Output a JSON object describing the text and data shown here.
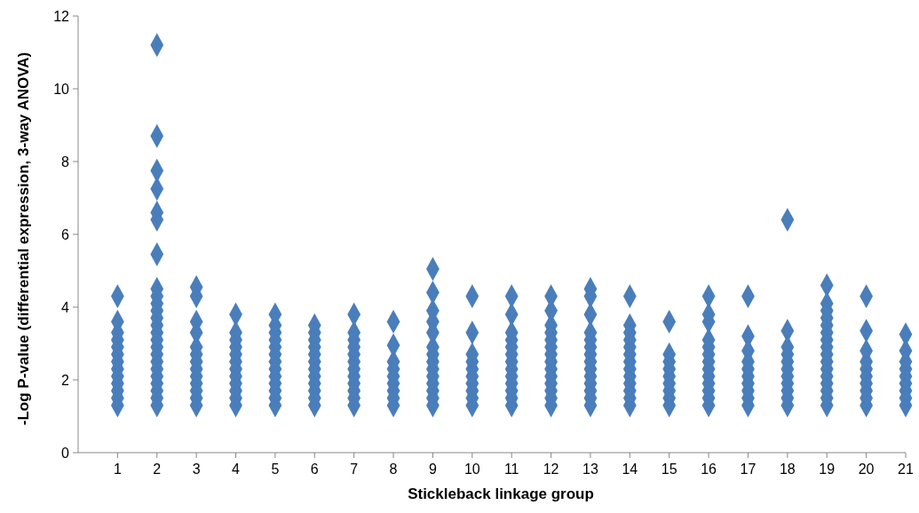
{
  "chart_data": {
    "type": "scatter",
    "xlabel": "Stickleback linkage group",
    "ylabel": "-Log P-value (differential expression, 3-way ANOVA)",
    "marker": "diamond",
    "categories": [
      "1",
      "2",
      "3",
      "4",
      "5",
      "6",
      "7",
      "8",
      "9",
      "10",
      "11",
      "12",
      "13",
      "14",
      "15",
      "16",
      "17",
      "18",
      "19",
      "20",
      "21"
    ],
    "ylim": [
      0,
      12
    ],
    "yticks": [
      0,
      2,
      4,
      6,
      8,
      10,
      12
    ],
    "series": [
      {
        "color": "#4a7ebb",
        "x": [
          "1",
          "1",
          "1",
          "1",
          "1",
          "1",
          "1",
          "1",
          "1",
          "1",
          "1",
          "1",
          "1"
        ],
        "values": [
          1.3,
          1.5,
          1.7,
          1.9,
          2.1,
          2.3,
          2.5,
          2.7,
          2.9,
          3.1,
          3.3,
          3.6,
          4.3
        ]
      },
      {
        "color": "#4a7ebb",
        "x": [
          "2",
          "2",
          "2",
          "2",
          "2",
          "2",
          "2",
          "2",
          "2",
          "2",
          "2",
          "2",
          "2",
          "2",
          "2",
          "2",
          "2",
          "2",
          "2",
          "2",
          "2",
          "2",
          "2",
          "2"
        ],
        "values": [
          1.3,
          1.5,
          1.7,
          1.9,
          2.1,
          2.3,
          2.5,
          2.7,
          2.9,
          3.1,
          3.3,
          3.5,
          3.7,
          3.9,
          4.1,
          4.3,
          4.5,
          5.45,
          6.4,
          6.6,
          7.25,
          7.75,
          8.7,
          11.2
        ]
      },
      {
        "color": "#4a7ebb",
        "x": [
          "3",
          "3",
          "3",
          "3",
          "3",
          "3",
          "3",
          "3",
          "3",
          "3",
          "3",
          "3",
          "3"
        ],
        "values": [
          1.3,
          1.5,
          1.7,
          1.9,
          2.1,
          2.3,
          2.5,
          2.7,
          2.9,
          3.3,
          3.6,
          4.3,
          4.55
        ]
      },
      {
        "color": "#4a7ebb",
        "x": [
          "4",
          "4",
          "4",
          "4",
          "4",
          "4",
          "4",
          "4",
          "4",
          "4",
          "4",
          "4"
        ],
        "values": [
          1.3,
          1.5,
          1.7,
          1.9,
          2.1,
          2.3,
          2.5,
          2.7,
          2.9,
          3.1,
          3.3,
          3.8
        ]
      },
      {
        "color": "#4a7ebb",
        "x": [
          "5",
          "5",
          "5",
          "5",
          "5",
          "5",
          "5",
          "5",
          "5",
          "5",
          "5",
          "5",
          "5"
        ],
        "values": [
          1.3,
          1.5,
          1.7,
          1.9,
          2.1,
          2.3,
          2.5,
          2.7,
          2.9,
          3.1,
          3.3,
          3.5,
          3.8
        ]
      },
      {
        "color": "#4a7ebb",
        "x": [
          "6",
          "6",
          "6",
          "6",
          "6",
          "6",
          "6",
          "6",
          "6",
          "6",
          "6",
          "6"
        ],
        "values": [
          1.3,
          1.5,
          1.7,
          1.9,
          2.1,
          2.3,
          2.5,
          2.7,
          2.9,
          3.1,
          3.3,
          3.5
        ]
      },
      {
        "color": "#4a7ebb",
        "x": [
          "7",
          "7",
          "7",
          "7",
          "7",
          "7",
          "7",
          "7",
          "7",
          "7",
          "7",
          "7"
        ],
        "values": [
          1.3,
          1.5,
          1.7,
          1.9,
          2.1,
          2.3,
          2.5,
          2.7,
          2.9,
          3.1,
          3.3,
          3.8
        ]
      },
      {
        "color": "#4a7ebb",
        "x": [
          "8",
          "8",
          "8",
          "8",
          "8",
          "8",
          "8",
          "8",
          "8"
        ],
        "values": [
          1.3,
          1.5,
          1.7,
          1.9,
          2.1,
          2.3,
          2.5,
          2.95,
          3.6
        ]
      },
      {
        "color": "#4a7ebb",
        "x": [
          "9",
          "9",
          "9",
          "9",
          "9",
          "9",
          "9",
          "9",
          "9",
          "9",
          "9",
          "9",
          "9",
          "9"
        ],
        "values": [
          1.3,
          1.5,
          1.7,
          1.9,
          2.1,
          2.3,
          2.5,
          2.7,
          2.9,
          3.3,
          3.6,
          3.9,
          4.4,
          5.05
        ]
      },
      {
        "color": "#4a7ebb",
        "x": [
          "10",
          "10",
          "10",
          "10",
          "10",
          "10",
          "10",
          "10",
          "10",
          "10"
        ],
        "values": [
          1.3,
          1.5,
          1.7,
          1.9,
          2.1,
          2.3,
          2.5,
          2.7,
          3.3,
          4.3
        ]
      },
      {
        "color": "#4a7ebb",
        "x": [
          "11",
          "11",
          "11",
          "11",
          "11",
          "11",
          "11",
          "11",
          "11",
          "11",
          "11",
          "11",
          "11"
        ],
        "values": [
          1.3,
          1.5,
          1.7,
          1.9,
          2.1,
          2.3,
          2.5,
          2.7,
          2.9,
          3.1,
          3.3,
          3.8,
          4.3
        ]
      },
      {
        "color": "#4a7ebb",
        "x": [
          "12",
          "12",
          "12",
          "12",
          "12",
          "12",
          "12",
          "12",
          "12",
          "12",
          "12",
          "12",
          "12",
          "12"
        ],
        "values": [
          1.3,
          1.5,
          1.7,
          1.9,
          2.1,
          2.3,
          2.5,
          2.7,
          2.9,
          3.1,
          3.3,
          3.5,
          3.9,
          4.3
        ]
      },
      {
        "color": "#4a7ebb",
        "x": [
          "13",
          "13",
          "13",
          "13",
          "13",
          "13",
          "13",
          "13",
          "13",
          "13",
          "13",
          "13",
          "13",
          "13"
        ],
        "values": [
          1.3,
          1.5,
          1.7,
          1.9,
          2.1,
          2.3,
          2.5,
          2.7,
          2.9,
          3.1,
          3.3,
          3.8,
          4.3,
          4.5
        ]
      },
      {
        "color": "#4a7ebb",
        "x": [
          "14",
          "14",
          "14",
          "14",
          "14",
          "14",
          "14",
          "14",
          "14",
          "14",
          "14",
          "14",
          "14"
        ],
        "values": [
          1.3,
          1.5,
          1.7,
          1.9,
          2.1,
          2.3,
          2.5,
          2.7,
          2.9,
          3.1,
          3.3,
          3.5,
          4.3
        ]
      },
      {
        "color": "#4a7ebb",
        "x": [
          "15",
          "15",
          "15",
          "15",
          "15",
          "15",
          "15",
          "15",
          "15"
        ],
        "values": [
          1.3,
          1.5,
          1.7,
          1.9,
          2.1,
          2.3,
          2.5,
          2.7,
          3.6
        ]
      },
      {
        "color": "#4a7ebb",
        "x": [
          "16",
          "16",
          "16",
          "16",
          "16",
          "16",
          "16",
          "16",
          "16",
          "16",
          "16",
          "16",
          "16"
        ],
        "values": [
          1.3,
          1.5,
          1.7,
          1.9,
          2.1,
          2.3,
          2.5,
          2.7,
          2.9,
          3.1,
          3.6,
          3.8,
          4.3
        ]
      },
      {
        "color": "#4a7ebb",
        "x": [
          "17",
          "17",
          "17",
          "17",
          "17",
          "17",
          "17",
          "17",
          "17",
          "17"
        ],
        "values": [
          1.3,
          1.5,
          1.7,
          1.9,
          2.1,
          2.3,
          2.5,
          2.8,
          3.2,
          4.3
        ]
      },
      {
        "color": "#4a7ebb",
        "x": [
          "18",
          "18",
          "18",
          "18",
          "18",
          "18",
          "18",
          "18",
          "18",
          "18",
          "18"
        ],
        "values": [
          1.3,
          1.5,
          1.7,
          1.9,
          2.1,
          2.3,
          2.5,
          2.7,
          2.9,
          3.35,
          6.4
        ]
      },
      {
        "color": "#4a7ebb",
        "x": [
          "19",
          "19",
          "19",
          "19",
          "19",
          "19",
          "19",
          "19",
          "19",
          "19",
          "19",
          "19",
          "19",
          "19",
          "19",
          "19"
        ],
        "values": [
          1.3,
          1.5,
          1.7,
          1.9,
          2.1,
          2.3,
          2.5,
          2.7,
          2.9,
          3.1,
          3.3,
          3.5,
          3.7,
          3.9,
          4.1,
          4.6
        ]
      },
      {
        "color": "#4a7ebb",
        "x": [
          "20",
          "20",
          "20",
          "20",
          "20",
          "20",
          "20",
          "20",
          "20",
          "20"
        ],
        "values": [
          1.3,
          1.5,
          1.7,
          1.9,
          2.1,
          2.3,
          2.5,
          2.8,
          3.35,
          4.3
        ]
      },
      {
        "color": "#4a7ebb",
        "x": [
          "21",
          "21",
          "21",
          "21",
          "21",
          "21",
          "21",
          "21",
          "21"
        ],
        "values": [
          1.3,
          1.5,
          1.7,
          1.9,
          2.1,
          2.3,
          2.5,
          2.8,
          3.25
        ]
      }
    ]
  }
}
